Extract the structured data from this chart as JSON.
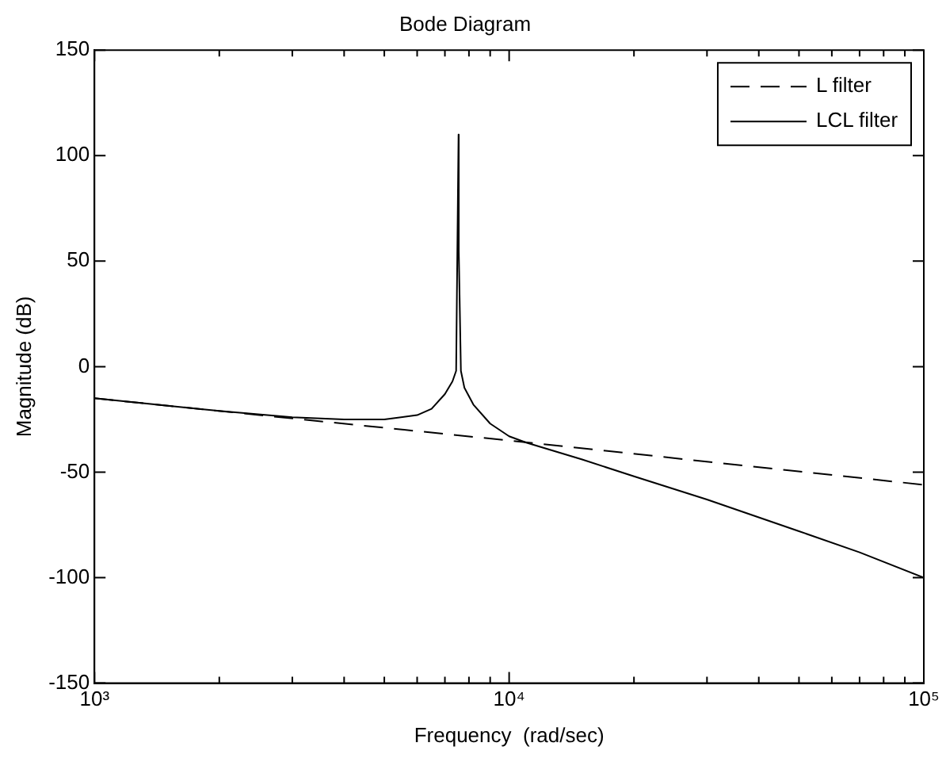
{
  "chart_data": {
    "type": "line",
    "title": "Bode Diagram",
    "xlabel": "Frequency  (rad/sec)",
    "ylabel": "Magnitude (dB)",
    "log": "x",
    "xlim": [
      1000,
      100000
    ],
    "xticks": [
      {
        "value": 1000,
        "label": "10³"
      },
      {
        "value": 2000,
        "label": null
      },
      {
        "value": 3000,
        "label": null
      },
      {
        "value": 4000,
        "label": null
      },
      {
        "value": 5000,
        "label": null
      },
      {
        "value": 6000,
        "label": null
      },
      {
        "value": 7000,
        "label": null
      },
      {
        "value": 8000,
        "label": null
      },
      {
        "value": 9000,
        "label": null
      },
      {
        "value": 10000,
        "label": "10⁴"
      },
      {
        "value": 20000,
        "label": null
      },
      {
        "value": 30000,
        "label": null
      },
      {
        "value": 40000,
        "label": null
      },
      {
        "value": 50000,
        "label": null
      },
      {
        "value": 60000,
        "label": null
      },
      {
        "value": 70000,
        "label": null
      },
      {
        "value": 80000,
        "label": null
      },
      {
        "value": 90000,
        "label": null
      },
      {
        "value": 100000,
        "label": "10⁵"
      }
    ],
    "ylim": [
      -150,
      150
    ],
    "yticks": [
      -150,
      -100,
      -50,
      0,
      50,
      100,
      150
    ],
    "grid": false,
    "legend": "top right",
    "series": [
      {
        "name": "L filter",
        "color": "#000000",
        "line_style": "dashed",
        "x": [
          1000,
          10000,
          100000
        ],
        "values": [
          -15,
          -35,
          -56
        ]
      },
      {
        "name": "LCL filter",
        "color": "#000000",
        "line_style": "solid",
        "x": [
          1000,
          2000,
          3000,
          4000,
          5000,
          6000,
          6500,
          7000,
          7300,
          7450,
          7550,
          7560,
          7650,
          7800,
          8200,
          9000,
          10000,
          11000,
          15000,
          20000,
          30000,
          50000,
          70000,
          100000
        ],
        "values": [
          -15,
          -21,
          -24,
          -25,
          -25,
          -23,
          -20,
          -13,
          -7,
          -2,
          110,
          55,
          -2,
          -10,
          -18,
          -27,
          -33,
          -36,
          -44,
          -52,
          -63,
          -78,
          -88,
          -100
        ]
      }
    ]
  }
}
